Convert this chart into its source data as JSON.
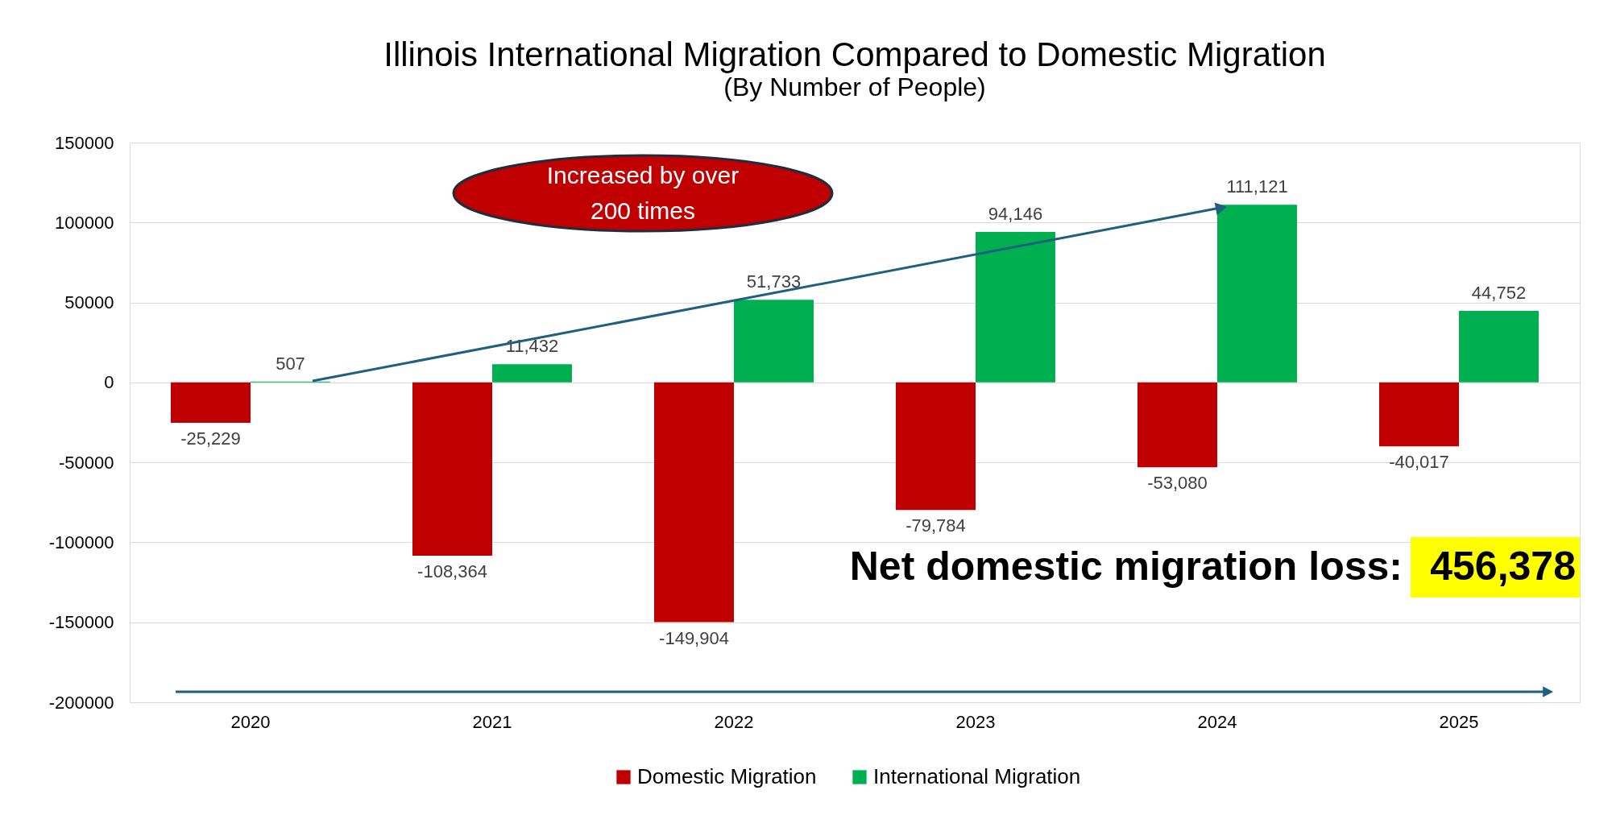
{
  "chart_data": {
    "type": "bar",
    "title": "Illinois International Migration Compared to Domestic Migration",
    "subtitle": "(By Number of People)",
    "categories": [
      "2020",
      "2021",
      "2022",
      "2023",
      "2024",
      "2025"
    ],
    "series": [
      {
        "name": "Domestic Migration",
        "color": "#c00000",
        "values": [
          -25229,
          -108364,
          -149904,
          -79784,
          -53080,
          -40017
        ],
        "value_labels": [
          "-25,229",
          "-108,364",
          "-149,904",
          "-79,784",
          "-53,080",
          "-40,017"
        ]
      },
      {
        "name": "International Migration",
        "color": "#00b050",
        "values": [
          507,
          11432,
          51733,
          94146,
          111121,
          44752
        ],
        "value_labels": [
          "507",
          "11,432",
          "51,733",
          "94,146",
          "111,121",
          "44,752"
        ]
      }
    ],
    "ylim": [
      -200000,
      150000
    ],
    "yticks": [
      -200000,
      -150000,
      -100000,
      -50000,
      0,
      50000,
      100000,
      150000
    ],
    "grid": "y",
    "legend": "bottom",
    "annotations": [
      "Increased by over 200 times",
      "Net domestic migration loss:",
      "456,378"
    ]
  }
}
